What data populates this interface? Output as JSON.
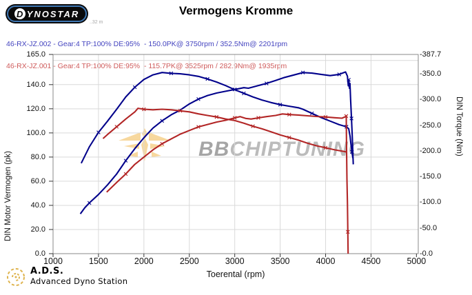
{
  "header": {
    "logo_d": "D",
    "logo_rest": "YNOSTAR",
    "logo_version": "..32 m",
    "title": "Vermogens Kromme"
  },
  "legend": [
    {
      "text": "46-RX-JZ.002 - Gear:4 TP:100% DE:95%  - 150.0PK@ 3750rpm / 352.5Nm@ 2201rpm",
      "color": "#4343bf"
    },
    {
      "text": "46-RX-JZ.001 - Gear:4 TP:100% DE:95%  - 115.7PK@ 3525rpm / 282.9Nm@ 1935rpm",
      "color": "#cf5b5b"
    }
  ],
  "watermark": {
    "bold": "BB",
    "rest": "CHIPTUNING"
  },
  "footer": {
    "abbr": "A.D.S.",
    "name": "Advanced Dyno Station"
  },
  "chart_data": {
    "type": "line",
    "title": "Vermogens Kromme",
    "xlabel": "Toerental (rpm)",
    "grid": true,
    "legend_position": "top-left",
    "x_axis": {
      "title": "Toerental (rpm)",
      "lim": [
        1000,
        5020
      ],
      "tick_values": [
        1000,
        1500,
        2000,
        2500,
        3000,
        3500,
        4000,
        4500,
        5000
      ],
      "tick_labels": [
        "1000",
        "1500",
        "2000",
        "2500",
        "3000",
        "3500",
        "4000",
        "4500",
        "5000"
      ]
    },
    "left_axis": {
      "title": "DIN Motor Vermogen (pk)",
      "max": 165,
      "tick_values": [
        165,
        140,
        120,
        100,
        80,
        60,
        40,
        20,
        0
      ],
      "tick_labels": [
        "165.0",
        "140.0",
        "120.0",
        "100.0",
        "80.0",
        "60.0",
        "40.0",
        "20.0",
        "0.0"
      ]
    },
    "right_axis": {
      "title": "DIN Torque (Nm)",
      "max": 387.7,
      "tick_values": [
        387.7,
        350,
        300,
        250,
        200,
        150,
        100,
        50,
        0
      ],
      "tick_labels": [
        "-387.7",
        "-350.0",
        "-300.0",
        "-250.0",
        "-200.0",
        "-150.0",
        "-100.0",
        "-50.0",
        "-0.0"
      ]
    },
    "grid_rpm": [
      1500,
      2000,
      2500,
      3000,
      3500,
      4000,
      4500
    ],
    "grid_pk": [
      20,
      40,
      60,
      80,
      100,
      120,
      140,
      160
    ],
    "series": [
      {
        "name": "run-002-power",
        "axis": "pk",
        "color": "#00008b",
        "peak": "150.0PK@ 3750rpm",
        "points": [
          [
            1300,
            33
          ],
          [
            1350,
            38
          ],
          [
            1400,
            42
          ],
          [
            1500,
            49
          ],
          [
            1600,
            57
          ],
          [
            1700,
            66
          ],
          [
            1800,
            77
          ],
          [
            1900,
            87
          ],
          [
            2000,
            96
          ],
          [
            2100,
            104
          ],
          [
            2200,
            110
          ],
          [
            2300,
            115
          ],
          [
            2400,
            119
          ],
          [
            2500,
            124
          ],
          [
            2600,
            128
          ],
          [
            2700,
            131
          ],
          [
            2800,
            133
          ],
          [
            2900,
            134.5
          ],
          [
            3000,
            136
          ],
          [
            3100,
            137.5
          ],
          [
            3150,
            137
          ],
          [
            3250,
            139
          ],
          [
            3350,
            141
          ],
          [
            3450,
            143.5
          ],
          [
            3550,
            146
          ],
          [
            3650,
            148
          ],
          [
            3750,
            150
          ],
          [
            3850,
            149.5
          ],
          [
            3950,
            148.5
          ],
          [
            4050,
            147.5
          ],
          [
            4150,
            148.5
          ],
          [
            4220,
            150.5
          ],
          [
            4240,
            147
          ],
          [
            4250,
            139
          ],
          [
            4255,
            144
          ],
          [
            4262,
            137
          ],
          [
            4268,
            141
          ],
          [
            4275,
            128
          ],
          [
            4285,
            112
          ],
          [
            4295,
            95
          ],
          [
            4300,
            83
          ],
          [
            4305,
            74
          ]
        ]
      },
      {
        "name": "run-002-torque",
        "axis": "nm",
        "color": "#00008b",
        "peak": "352.5Nm@ 2201rpm",
        "points": [
          [
            1310,
            176
          ],
          [
            1400,
            208
          ],
          [
            1500,
            236
          ],
          [
            1600,
            258
          ],
          [
            1700,
            281
          ],
          [
            1800,
            305
          ],
          [
            1900,
            324
          ],
          [
            2000,
            339
          ],
          [
            2100,
            348
          ],
          [
            2201,
            352.5
          ],
          [
            2300,
            351
          ],
          [
            2400,
            350
          ],
          [
            2500,
            348
          ],
          [
            2600,
            345
          ],
          [
            2700,
            340
          ],
          [
            2800,
            334
          ],
          [
            2900,
            327
          ],
          [
            3000,
            319
          ],
          [
            3100,
            312
          ],
          [
            3200,
            305
          ],
          [
            3300,
            299
          ],
          [
            3400,
            294
          ],
          [
            3500,
            290
          ],
          [
            3600,
            287
          ],
          [
            3700,
            284
          ],
          [
            3750,
            281
          ],
          [
            3850,
            273
          ],
          [
            3950,
            265
          ],
          [
            4050,
            258
          ],
          [
            4150,
            251
          ],
          [
            4230,
            247
          ],
          [
            4255,
            243
          ],
          [
            4270,
            228
          ],
          [
            4280,
            212
          ],
          [
            4290,
            198
          ],
          [
            4300,
            186
          ]
        ]
      },
      {
        "name": "run-001-power",
        "axis": "pk",
        "color": "#b22525",
        "peak": "115.7PK@ 3525rpm",
        "points": [
          [
            1590,
            51
          ],
          [
            1700,
            59
          ],
          [
            1800,
            66
          ],
          [
            1900,
            74
          ],
          [
            2000,
            80
          ],
          [
            2100,
            86
          ],
          [
            2200,
            91
          ],
          [
            2300,
            95
          ],
          [
            2400,
            99
          ],
          [
            2500,
            102
          ],
          [
            2600,
            105
          ],
          [
            2700,
            107
          ],
          [
            2800,
            109
          ],
          [
            2900,
            110.5
          ],
          [
            3000,
            112.5
          ],
          [
            3060,
            113.5
          ],
          [
            3120,
            112
          ],
          [
            3180,
            111.5
          ],
          [
            3260,
            112.5
          ],
          [
            3350,
            113.5
          ],
          [
            3450,
            114.5
          ],
          [
            3525,
            115.7
          ],
          [
            3600,
            115.2
          ],
          [
            3700,
            114.8
          ],
          [
            3800,
            114.2
          ],
          [
            3900,
            113.6
          ],
          [
            4000,
            113.2
          ],
          [
            4100,
            112.6
          ],
          [
            4180,
            112.2
          ],
          [
            4220,
            113.5
          ],
          [
            4227,
            114
          ],
          [
            4230,
            95
          ],
          [
            4235,
            62
          ],
          [
            4240,
            43
          ],
          [
            4245,
            18
          ],
          [
            4248,
            0
          ]
        ]
      },
      {
        "name": "run-001-torque",
        "axis": "nm",
        "color": "#b22525",
        "peak": "282.9Nm@ 1935rpm",
        "points": [
          [
            1550,
            224
          ],
          [
            1600,
            232
          ],
          [
            1700,
            247
          ],
          [
            1800,
            262
          ],
          [
            1900,
            276
          ],
          [
            1935,
            282.9
          ],
          [
            2000,
            281
          ],
          [
            2100,
            280
          ],
          [
            2200,
            281
          ],
          [
            2300,
            280
          ],
          [
            2400,
            278
          ],
          [
            2500,
            276
          ],
          [
            2600,
            272
          ],
          [
            2700,
            269
          ],
          [
            2800,
            266
          ],
          [
            2900,
            262
          ],
          [
            3000,
            259
          ],
          [
            3100,
            254
          ],
          [
            3200,
            248
          ],
          [
            3300,
            243
          ],
          [
            3400,
            237
          ],
          [
            3500,
            231
          ],
          [
            3600,
            226
          ],
          [
            3700,
            221
          ],
          [
            3800,
            215
          ],
          [
            3900,
            210
          ],
          [
            4000,
            206
          ],
          [
            4100,
            202
          ],
          [
            4200,
            199
          ],
          [
            4227,
            198
          ]
        ]
      }
    ]
  }
}
